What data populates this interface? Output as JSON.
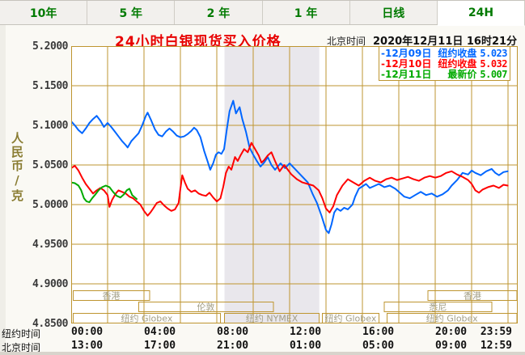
{
  "tabs": {
    "items": [
      {
        "label": "10年",
        "active": false
      },
      {
        "label": "5 年",
        "active": false
      },
      {
        "label": "2 年",
        "active": false
      },
      {
        "label": "1 年",
        "active": false
      },
      {
        "label": "日线",
        "active": false
      },
      {
        "label": "24H",
        "active": true
      }
    ]
  },
  "header": {
    "title": "24小时白银现货买入价格",
    "timezone_label": "北京时间",
    "datetime": "2020年12月11日 16时21分"
  },
  "y_axis": {
    "unit_label": "人民币/克",
    "tick_labels": [
      "5.2000",
      "5.1500",
      "5.1000",
      "5.0500",
      "5.0000",
      "4.9500",
      "4.9000",
      "4.8500"
    ]
  },
  "legend": {
    "items": [
      {
        "date": "-12月09日",
        "name": "纽约收盘",
        "value": "5.023",
        "color": "#0066FF"
      },
      {
        "date": "-12月10日",
        "name": "纽约收盘",
        "value": "5.032",
        "color": "#FF0000"
      },
      {
        "date": "-12月11日",
        "name": "最新价",
        "value": "5.007",
        "color": "#00AA00"
      }
    ]
  },
  "footer": {
    "rows": [
      {
        "label": "纽约时间",
        "times": [
          "00:00",
          "04:00",
          "08:00",
          "12:00",
          "16:00",
          "20:00",
          "23:59"
        ]
      },
      {
        "label": "北京时间",
        "times": [
          "13:00",
          "17:00",
          "21:00",
          "01:00",
          "05:00",
          "09:00",
          "12:59"
        ]
      }
    ]
  },
  "chart_data": {
    "type": "line",
    "title": "24小时白银现货买入价格",
    "ylabel": "人民币/克",
    "ylim": [
      4.85,
      5.2
    ],
    "y_ticks": [
      5.2,
      5.15,
      5.1,
      5.05,
      5.0,
      4.95,
      4.9,
      4.85
    ],
    "x_max_hour": 24.53,
    "x_tick_hours": [
      0,
      4,
      8,
      12,
      16,
      20,
      23.98
    ],
    "grid_color": "#BE9530",
    "session_label_color": "#A29E86",
    "band": {
      "start_hour": 8.42,
      "end_hour": 13.63,
      "color": "#E9E7EC",
      "meaning": "纽约NYMEX场内时段"
    },
    "sessions": [
      {
        "row": 0,
        "label": "香港",
        "start": 0.1,
        "end": 4.3
      },
      {
        "row": 0,
        "label": "香港",
        "start": 19.6,
        "end": 24.5
      },
      {
        "row": 1,
        "label": "伦敦",
        "start": 3.7,
        "end": 11.1
      },
      {
        "row": 1,
        "label": "悉尼",
        "start": 17.2,
        "end": 23.1
      },
      {
        "row": 2,
        "label": "纽约 Globex",
        "start": 0.1,
        "end": 8.2
      },
      {
        "row": 2,
        "label": "纽约 NYMEX",
        "start": 8.42,
        "end": 13.63
      },
      {
        "row": 2,
        "label": "纽约 Globex",
        "start": 13.8,
        "end": 16.9
      },
      {
        "row": 2,
        "label": "纽约 Globex",
        "start": 17.35,
        "end": 24.5
      }
    ],
    "series": [
      {
        "name": "12月09日 纽约收盘 5.023",
        "color": "#0066FF",
        "points": [
          [
            0,
            5.105
          ],
          [
            0.2,
            5.1
          ],
          [
            0.4,
            5.094
          ],
          [
            0.6,
            5.09
          ],
          [
            0.8,
            5.096
          ],
          [
            1.0,
            5.103
          ],
          [
            1.2,
            5.108
          ],
          [
            1.4,
            5.112
          ],
          [
            1.6,
            5.106
          ],
          [
            1.8,
            5.098
          ],
          [
            2.0,
            5.103
          ],
          [
            2.2,
            5.098
          ],
          [
            2.4,
            5.092
          ],
          [
            2.6,
            5.086
          ],
          [
            2.8,
            5.08
          ],
          [
            3.0,
            5.075
          ],
          [
            3.1,
            5.072
          ],
          [
            3.3,
            5.08
          ],
          [
            3.5,
            5.085
          ],
          [
            3.7,
            5.09
          ],
          [
            3.9,
            5.1
          ],
          [
            4.1,
            5.112
          ],
          [
            4.2,
            5.116
          ],
          [
            4.4,
            5.106
          ],
          [
            4.6,
            5.095
          ],
          [
            4.8,
            5.088
          ],
          [
            5.0,
            5.086
          ],
          [
            5.2,
            5.092
          ],
          [
            5.4,
            5.096
          ],
          [
            5.6,
            5.092
          ],
          [
            5.8,
            5.087
          ],
          [
            6.0,
            5.085
          ],
          [
            6.2,
            5.086
          ],
          [
            6.4,
            5.089
          ],
          [
            6.6,
            5.093
          ],
          [
            6.75,
            5.097
          ],
          [
            6.9,
            5.094
          ],
          [
            7.1,
            5.085
          ],
          [
            7.3,
            5.068
          ],
          [
            7.5,
            5.054
          ],
          [
            7.64,
            5.044
          ],
          [
            7.8,
            5.052
          ],
          [
            7.95,
            5.063
          ],
          [
            8.1,
            5.066
          ],
          [
            8.25,
            5.064
          ],
          [
            8.4,
            5.07
          ],
          [
            8.55,
            5.095
          ],
          [
            8.7,
            5.118
          ],
          [
            8.9,
            5.131
          ],
          [
            9.05,
            5.115
          ],
          [
            9.25,
            5.123
          ],
          [
            9.4,
            5.108
          ],
          [
            9.6,
            5.092
          ],
          [
            9.8,
            5.072
          ],
          [
            10.0,
            5.063
          ],
          [
            10.2,
            5.055
          ],
          [
            10.4,
            5.048
          ],
          [
            10.6,
            5.053
          ],
          [
            10.8,
            5.06
          ],
          [
            11.0,
            5.05
          ],
          [
            11.2,
            5.044
          ],
          [
            11.5,
            5.052
          ],
          [
            11.75,
            5.046
          ],
          [
            12.0,
            5.052
          ],
          [
            12.25,
            5.046
          ],
          [
            12.5,
            5.04
          ],
          [
            12.75,
            5.034
          ],
          [
            13.0,
            5.028
          ],
          [
            13.25,
            5.014
          ],
          [
            13.5,
            5.002
          ],
          [
            13.75,
            4.986
          ],
          [
            14.0,
            4.968
          ],
          [
            14.15,
            4.964
          ],
          [
            14.3,
            4.975
          ],
          [
            14.45,
            4.99
          ],
          [
            14.6,
            4.995
          ],
          [
            14.8,
            4.992
          ],
          [
            15.0,
            4.996
          ],
          [
            15.2,
            4.994
          ],
          [
            15.45,
            5.0
          ],
          [
            15.6,
            5.01
          ],
          [
            15.8,
            5.02
          ],
          [
            16.0,
            5.023
          ],
          [
            16.2,
            5.026
          ],
          [
            16.4,
            5.021
          ],
          [
            16.6,
            5.023
          ],
          [
            16.9,
            5.026
          ],
          [
            17.2,
            5.022
          ],
          [
            17.5,
            5.024
          ],
          [
            17.8,
            5.02
          ],
          [
            18.0,
            5.016
          ],
          [
            18.3,
            5.01
          ],
          [
            18.6,
            5.008
          ],
          [
            18.9,
            5.012
          ],
          [
            19.2,
            5.016
          ],
          [
            19.5,
            5.012
          ],
          [
            19.8,
            5.014
          ],
          [
            20.1,
            5.01
          ],
          [
            20.4,
            5.013
          ],
          [
            20.7,
            5.018
          ],
          [
            20.9,
            5.024
          ],
          [
            21.2,
            5.031
          ],
          [
            21.5,
            5.04
          ],
          [
            21.8,
            5.038
          ],
          [
            22.0,
            5.043
          ],
          [
            22.2,
            5.04
          ],
          [
            22.5,
            5.037
          ],
          [
            22.8,
            5.042
          ],
          [
            23.1,
            5.045
          ],
          [
            23.3,
            5.04
          ],
          [
            23.5,
            5.037
          ],
          [
            23.75,
            5.041
          ],
          [
            23.98,
            5.042
          ]
        ]
      },
      {
        "name": "12月10日 纽约收盘 5.032",
        "color": "#FF0000",
        "points": [
          [
            0,
            5.046
          ],
          [
            0.2,
            5.049
          ],
          [
            0.4,
            5.043
          ],
          [
            0.6,
            5.034
          ],
          [
            0.8,
            5.026
          ],
          [
            1.0,
            5.02
          ],
          [
            1.2,
            5.014
          ],
          [
            1.4,
            5.018
          ],
          [
            1.6,
            5.021
          ],
          [
            1.8,
            5.018
          ],
          [
            2.0,
            5.012
          ],
          [
            2.1,
            4.997
          ],
          [
            2.25,
            5.006
          ],
          [
            2.45,
            5.014
          ],
          [
            2.6,
            5.018
          ],
          [
            2.8,
            5.016
          ],
          [
            3.0,
            5.014
          ],
          [
            3.2,
            5.01
          ],
          [
            3.4,
            5.008
          ],
          [
            3.6,
            5.004
          ],
          [
            3.8,
            5.0
          ],
          [
            4.0,
            4.992
          ],
          [
            4.2,
            4.986
          ],
          [
            4.35,
            4.99
          ],
          [
            4.5,
            4.995
          ],
          [
            4.7,
            5.002
          ],
          [
            4.9,
            5.004
          ],
          [
            5.1,
            4.999
          ],
          [
            5.3,
            4.995
          ],
          [
            5.5,
            4.992
          ],
          [
            5.7,
            4.994
          ],
          [
            5.9,
            5.002
          ],
          [
            6.0,
            5.02
          ],
          [
            6.1,
            5.037
          ],
          [
            6.25,
            5.028
          ],
          [
            6.4,
            5.02
          ],
          [
            6.6,
            5.016
          ],
          [
            6.8,
            5.018
          ],
          [
            7.0,
            5.014
          ],
          [
            7.2,
            5.012
          ],
          [
            7.4,
            5.011
          ],
          [
            7.6,
            5.015
          ],
          [
            7.8,
            5.009
          ],
          [
            8.0,
            5.004
          ],
          [
            8.2,
            5.008
          ],
          [
            8.35,
            5.022
          ],
          [
            8.5,
            5.04
          ],
          [
            8.65,
            5.048
          ],
          [
            8.8,
            5.044
          ],
          [
            9.0,
            5.06
          ],
          [
            9.15,
            5.055
          ],
          [
            9.3,
            5.062
          ],
          [
            9.5,
            5.07
          ],
          [
            9.7,
            5.066
          ],
          [
            9.9,
            5.078
          ],
          [
            10.1,
            5.07
          ],
          [
            10.3,
            5.062
          ],
          [
            10.45,
            5.053
          ],
          [
            10.6,
            5.056
          ],
          [
            10.8,
            5.062
          ],
          [
            11.0,
            5.066
          ],
          [
            11.2,
            5.055
          ],
          [
            11.45,
            5.042
          ],
          [
            11.7,
            5.05
          ],
          [
            11.9,
            5.044
          ],
          [
            12.1,
            5.038
          ],
          [
            12.4,
            5.032
          ],
          [
            12.7,
            5.028
          ],
          [
            13.0,
            5.026
          ],
          [
            13.3,
            5.024
          ],
          [
            13.6,
            5.018
          ],
          [
            13.8,
            5.008
          ],
          [
            14.0,
            4.995
          ],
          [
            14.2,
            4.99
          ],
          [
            14.4,
            4.998
          ],
          [
            14.6,
            5.012
          ],
          [
            14.9,
            5.024
          ],
          [
            15.2,
            5.032
          ],
          [
            15.5,
            5.028
          ],
          [
            15.8,
            5.024
          ],
          [
            16.1,
            5.03
          ],
          [
            16.4,
            5.034
          ],
          [
            16.7,
            5.03
          ],
          [
            17.0,
            5.028
          ],
          [
            17.3,
            5.032
          ],
          [
            17.6,
            5.034
          ],
          [
            17.9,
            5.031
          ],
          [
            18.2,
            5.033
          ],
          [
            18.5,
            5.035
          ],
          [
            18.8,
            5.032
          ],
          [
            19.1,
            5.03
          ],
          [
            19.4,
            5.034
          ],
          [
            19.7,
            5.036
          ],
          [
            20.0,
            5.034
          ],
          [
            20.3,
            5.036
          ],
          [
            20.6,
            5.04
          ],
          [
            20.9,
            5.042
          ],
          [
            21.2,
            5.038
          ],
          [
            21.5,
            5.035
          ],
          [
            21.8,
            5.031
          ],
          [
            22.0,
            5.026
          ],
          [
            22.2,
            5.018
          ],
          [
            22.4,
            5.015
          ],
          [
            22.6,
            5.019
          ],
          [
            22.9,
            5.022
          ],
          [
            23.2,
            5.024
          ],
          [
            23.5,
            5.021
          ],
          [
            23.75,
            5.025
          ],
          [
            23.98,
            5.024
          ]
        ]
      },
      {
        "name": "12月11日 最新价 5.007",
        "color": "#00AA00",
        "points": [
          [
            0,
            5.028
          ],
          [
            0.2,
            5.027
          ],
          [
            0.4,
            5.024
          ],
          [
            0.55,
            5.018
          ],
          [
            0.7,
            5.008
          ],
          [
            0.85,
            5.004
          ],
          [
            1.0,
            5.003
          ],
          [
            1.15,
            5.008
          ],
          [
            1.3,
            5.012
          ],
          [
            1.5,
            5.018
          ],
          [
            1.7,
            5.022
          ],
          [
            1.9,
            5.024
          ],
          [
            2.1,
            5.022
          ],
          [
            2.3,
            5.016
          ],
          [
            2.5,
            5.011
          ],
          [
            2.7,
            5.009
          ],
          [
            2.9,
            5.013
          ],
          [
            3.05,
            5.018
          ],
          [
            3.2,
            5.02
          ],
          [
            3.35,
            5.012
          ],
          [
            3.5,
            5.009
          ],
          [
            3.6,
            5.007
          ]
        ]
      }
    ]
  }
}
